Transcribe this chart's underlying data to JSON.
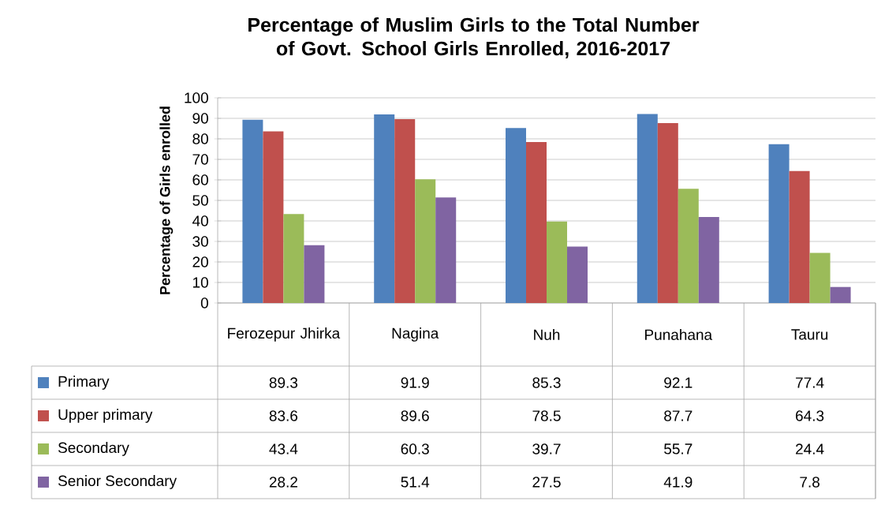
{
  "chart_data": {
    "type": "bar",
    "title": "Percentage of Muslim Girls to the Total Number of Govt. School Girls Enrolled, 2016-2017",
    "ylabel": "Percentage of Girls enrolled",
    "categories": [
      "Ferozepur Jhirka",
      "Nagina",
      "Nuh",
      "Punahana",
      "Tauru"
    ],
    "series": [
      {
        "name": "Primary",
        "color": "#4f81bd",
        "values": [
          89.3,
          91.9,
          85.3,
          92.1,
          77.4
        ]
      },
      {
        "name": "Upper primary",
        "color": "#c0504d",
        "values": [
          83.6,
          89.6,
          78.5,
          87.7,
          64.3
        ]
      },
      {
        "name": "Secondary",
        "color": "#9bbb59",
        "values": [
          43.4,
          60.3,
          39.7,
          55.7,
          24.4
        ]
      },
      {
        "name": "Senior Secondary",
        "color": "#8064a2",
        "values": [
          28.2,
          51.4,
          27.5,
          41.9,
          7.8
        ]
      }
    ],
    "ylim": [
      0,
      100
    ],
    "yticks": [
      0,
      10,
      20,
      30,
      40,
      50,
      60,
      70,
      80,
      90,
      100
    ],
    "grid": "y",
    "legend": "bottom",
    "data_labels": true
  }
}
